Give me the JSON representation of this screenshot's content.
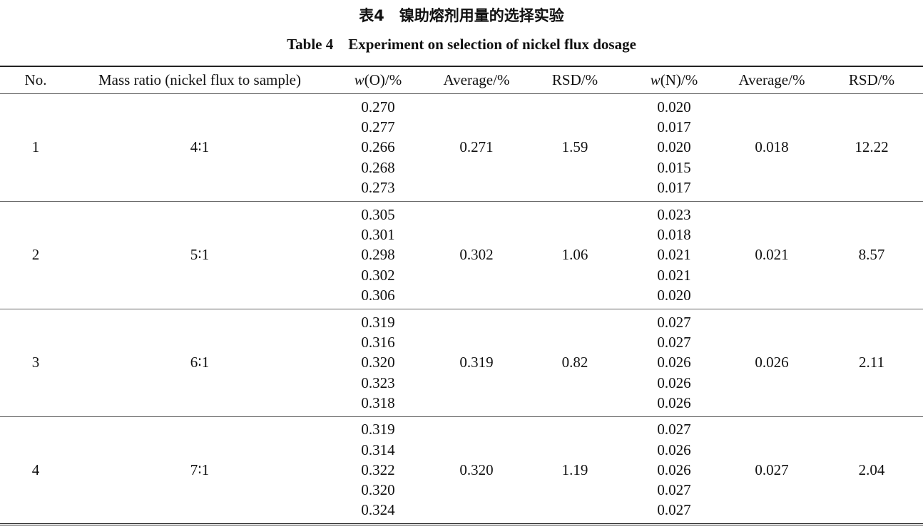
{
  "title": "表4　镍助熔剂用量的选择实验",
  "subtitle": "Table 4　Experiment on selection of nickel flux dosage",
  "headers": {
    "no": "No.",
    "mass_ratio": "Mass ratio (nickel flux to sample)",
    "wO_var": "w",
    "wO_rest": "(O)/%",
    "avgO": "Average/%",
    "rsdO": "RSD/%",
    "wN_var": "w",
    "wN_rest": "(N)/%",
    "avgN": "Average/%",
    "rsdN": "RSD/%"
  },
  "rows": [
    {
      "no": "1",
      "ratio": "4∶1",
      "wO": [
        "0.270",
        "0.277",
        "0.266",
        "0.268",
        "0.273"
      ],
      "avgO": "0.271",
      "rsdO": "1.59",
      "wN": [
        "0.020",
        "0.017",
        "0.020",
        "0.015",
        "0.017"
      ],
      "avgN": "0.018",
      "rsdN": "12.22"
    },
    {
      "no": "2",
      "ratio": "5∶1",
      "wO": [
        "0.305",
        "0.301",
        "0.298",
        "0.302",
        "0.306"
      ],
      "avgO": "0.302",
      "rsdO": "1.06",
      "wN": [
        "0.023",
        "0.018",
        "0.021",
        "0.021",
        "0.020"
      ],
      "avgN": "0.021",
      "rsdN": "8.57"
    },
    {
      "no": "3",
      "ratio": "6∶1",
      "wO": [
        "0.319",
        "0.316",
        "0.320",
        "0.323",
        "0.318"
      ],
      "avgO": "0.319",
      "rsdO": "0.82",
      "wN": [
        "0.027",
        "0.027",
        "0.026",
        "0.026",
        "0.026"
      ],
      "avgN": "0.026",
      "rsdN": "2.11"
    },
    {
      "no": "4",
      "ratio": "7∶1",
      "wO": [
        "0.319",
        "0.314",
        "0.322",
        "0.320",
        "0.324"
      ],
      "avgO": "0.320",
      "rsdO": "1.19",
      "wN": [
        "0.027",
        "0.026",
        "0.026",
        "0.027",
        "0.027"
      ],
      "avgN": "0.027",
      "rsdN": "2.04"
    }
  ]
}
